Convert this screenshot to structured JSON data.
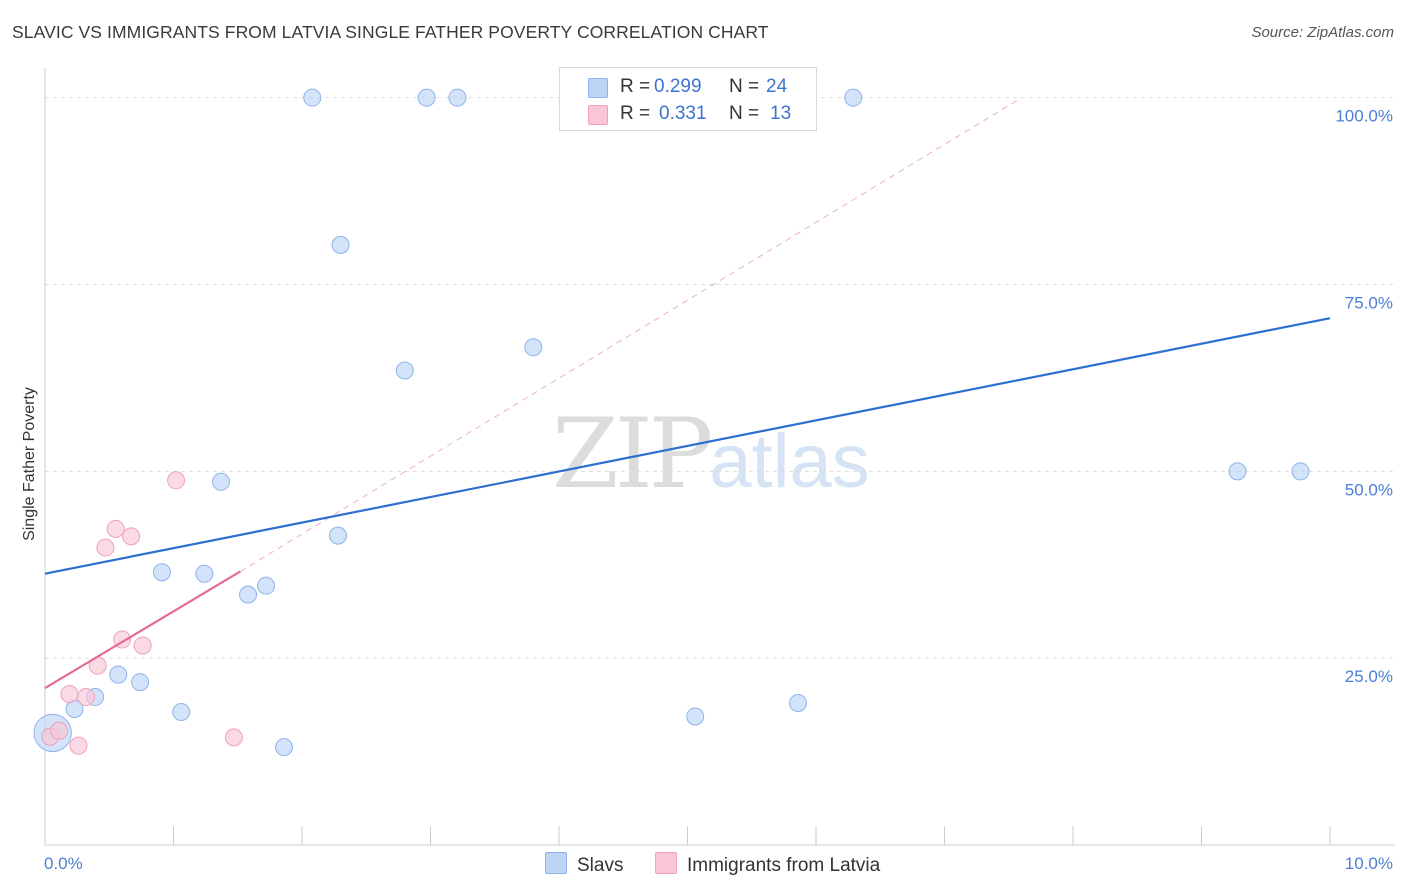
{
  "title": "SLAVIC VS IMMIGRANTS FROM LATVIA SINGLE FATHER POVERTY CORRELATION CHART",
  "source": "Source: ZipAtlas.com",
  "watermark": {
    "zip": "ZIP",
    "atlas": "atlas"
  },
  "legend": {
    "slavs": {
      "r_label": "R =",
      "r_value": "0.299",
      "n_label": "N =",
      "n_value": "24"
    },
    "latvia": {
      "r_label": "R =",
      "r_value": "0.331",
      "n_label": "N =",
      "n_value": "13"
    }
  },
  "bottom_legend": {
    "slavs": "Slavs",
    "latvia": "Immigrants from Latvia"
  },
  "colors": {
    "slavs_fill": "#bcd4f6",
    "slavs_stroke": "#8fb3ea",
    "slavs_line": "#2d6fd0",
    "latvia_fill": "#f8c6d6",
    "latvia_stroke": "#f0a0bb",
    "latvia_line": "#e46a94",
    "tick": "#4a7fd4",
    "grid": "#dddddd"
  },
  "chart_data": {
    "type": "scatter",
    "title": "SLAVIC VS IMMIGRANTS FROM LATVIA SINGLE FATHER POVERTY CORRELATION CHART",
    "xlabel": "",
    "ylabel": "Single Father Poverty",
    "xlim": [
      0,
      10
    ],
    "ylim": [
      0,
      102.5
    ],
    "x_tick_labels": [
      "0.0%",
      "10.0%"
    ],
    "y_ticks": [
      25,
      50,
      75,
      100
    ],
    "y_tick_labels": [
      "25.0%",
      "50.0%",
      "75.0%",
      "100.0%"
    ],
    "series": [
      {
        "name": "Slavs",
        "points": [
          [
            0.06,
            15.0,
            2.2
          ],
          [
            0.23,
            18.2,
            1
          ],
          [
            0.39,
            19.8,
            1
          ],
          [
            0.57,
            22.8,
            1
          ],
          [
            0.74,
            21.8,
            1
          ],
          [
            0.91,
            36.5,
            1
          ],
          [
            1.06,
            17.8,
            1
          ],
          [
            1.24,
            36.3,
            1
          ],
          [
            1.37,
            48.6,
            1
          ],
          [
            1.58,
            33.5,
            1
          ],
          [
            1.72,
            34.7,
            1
          ],
          [
            1.86,
            13.1,
            1
          ],
          [
            2.08,
            100.0,
            1
          ],
          [
            2.28,
            41.4,
            1
          ],
          [
            2.3,
            80.3,
            1
          ],
          [
            2.8,
            63.5,
            1
          ],
          [
            2.97,
            100.0,
            1
          ],
          [
            3.21,
            100.0,
            1
          ],
          [
            3.8,
            66.6,
            1
          ],
          [
            5.06,
            17.2,
            1
          ],
          [
            5.86,
            19.0,
            1
          ],
          [
            6.29,
            100.0,
            1
          ],
          [
            9.28,
            50.0,
            1
          ],
          [
            9.77,
            50.0,
            1
          ]
        ],
        "trend": {
          "x0": 0.0,
          "y0": 36.3,
          "x1": 10.0,
          "y1": 70.5
        }
      },
      {
        "name": "Immigrants from Latvia",
        "points": [
          [
            0.04,
            14.5,
            1
          ],
          [
            0.11,
            15.3,
            1
          ],
          [
            0.19,
            20.2,
            1
          ],
          [
            0.26,
            13.3,
            1
          ],
          [
            0.32,
            19.8,
            1
          ],
          [
            0.41,
            24.0,
            1
          ],
          [
            0.47,
            39.8,
            1
          ],
          [
            0.55,
            42.3,
            1
          ],
          [
            0.6,
            27.5,
            1
          ],
          [
            0.67,
            41.3,
            1
          ],
          [
            0.76,
            26.7,
            1
          ],
          [
            1.02,
            48.8,
            1
          ],
          [
            1.47,
            14.4,
            1
          ]
        ],
        "trend": {
          "x0": 0.0,
          "y0": 21.0,
          "x1": 1.52,
          "y1": 36.6
        },
        "trend_extension": {
          "x0": 1.52,
          "y0": 36.6,
          "x1": 7.6,
          "y1": 100.0
        }
      }
    ]
  }
}
